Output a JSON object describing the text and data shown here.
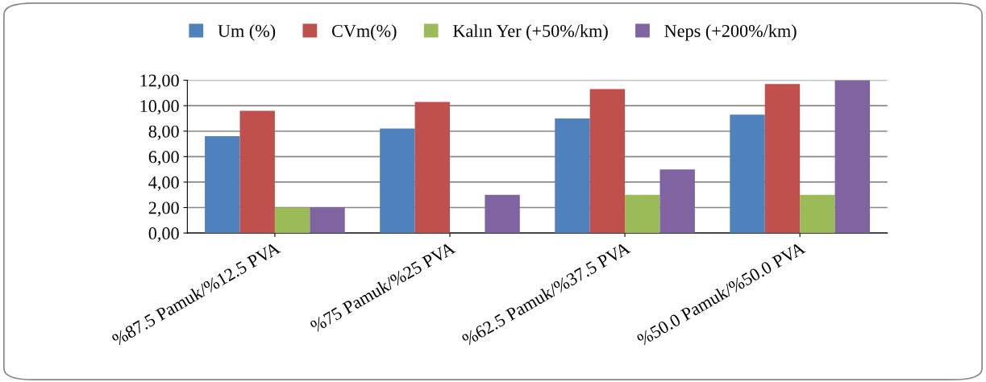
{
  "chart_data": {
    "type": "bar",
    "categories": [
      "%87.5 Pamuk/%12.5 PVA",
      "%75 Pamuk/%25 PVA",
      "%62.5 Pamuk/%37.5 PVA",
      "%50.0 Pamuk/%50.0 PVA"
    ],
    "series": [
      {
        "name": "Um (%)",
        "color": "#4f81bd",
        "values": [
          7.6,
          8.2,
          9.0,
          9.3
        ]
      },
      {
        "name": "CVm(%)",
        "color": "#c0504d",
        "values": [
          9.6,
          10.3,
          11.3,
          11.7
        ]
      },
      {
        "name": "Kalın Yer (+50%/km)",
        "color": "#9bbb59",
        "values": [
          2.0,
          0,
          3.0,
          3.0
        ]
      },
      {
        "name": "Neps (+200%/km)",
        "color": "#8064a2",
        "values": [
          2.0,
          3.0,
          5.0,
          12.0
        ]
      }
    ],
    "ylim": [
      0,
      12
    ],
    "yticks": [
      {
        "value": 0,
        "label": "0,00"
      },
      {
        "value": 2,
        "label": "2,00"
      },
      {
        "value": 4,
        "label": "4,00"
      },
      {
        "value": 6,
        "label": "6,00"
      },
      {
        "value": 8,
        "label": "8,00"
      },
      {
        "value": 10,
        "label": "10,00"
      },
      {
        "value": 12,
        "label": "12,00"
      }
    ],
    "grid": "y",
    "legend": "top"
  }
}
